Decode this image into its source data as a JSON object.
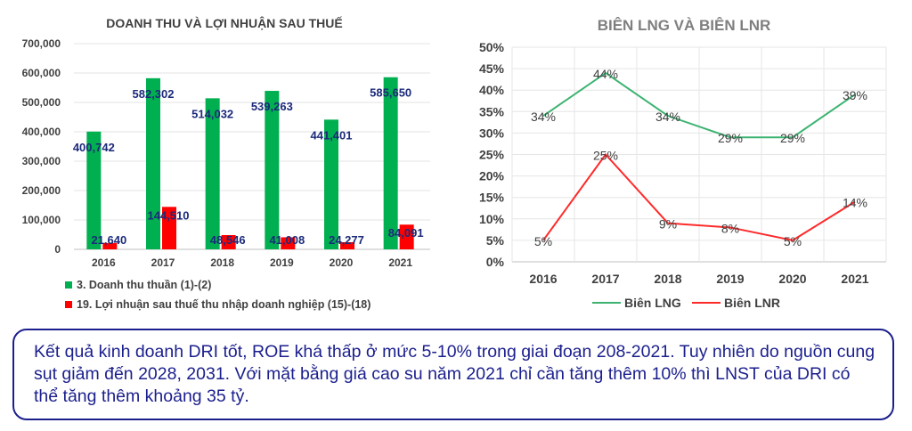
{
  "chart_data": [
    {
      "type": "bar",
      "title": "DOANH THU VÀ LỢI NHUẬN SAU THUẾ",
      "categories": [
        "2016",
        "2017",
        "2018",
        "2019",
        "2020",
        "2021"
      ],
      "yticks": [
        "700,000",
        "600,000",
        "500,000",
        "400,000",
        "300,000",
        "200,000",
        "100,000",
        "0"
      ],
      "ylim": [
        0,
        700000
      ],
      "grid": true,
      "legend_position": "bottom-left",
      "series": [
        {
          "name": "3. Doanh thu thuần (1)-(2)",
          "color": "#00b050",
          "values": [
            400742,
            582302,
            514032,
            539263,
            441401,
            585650
          ],
          "labels": [
            "400,742",
            "582,302",
            "514,032",
            "539,263",
            "441,401",
            "585,650"
          ]
        },
        {
          "name": "19. Lợi nhuận sau thuế thu nhập doanh nghiệp (15)-(18)",
          "color": "#ff0000",
          "values": [
            21640,
            144510,
            48546,
            41008,
            24277,
            84091
          ],
          "labels": [
            "21,640",
            "144,510",
            "48,546",
            "41,008",
            "24,277",
            "84,091"
          ]
        }
      ]
    },
    {
      "type": "line",
      "title": "BIÊN LNG VÀ BIÊN LNR",
      "categories": [
        "2016",
        "2017",
        "2018",
        "2019",
        "2020",
        "2021"
      ],
      "yticks": [
        "50%",
        "45%",
        "40%",
        "35%",
        "30%",
        "25%",
        "20%",
        "15%",
        "10%",
        "5%",
        "0%"
      ],
      "ylim": [
        0,
        50
      ],
      "grid": true,
      "legend_position": "bottom",
      "series": [
        {
          "name": "Biên LNG",
          "color": "#3cb371",
          "values": [
            34,
            44,
            34,
            29,
            29,
            39
          ],
          "labels": [
            "34%",
            "44%",
            "34%",
            "29%",
            "29%",
            "39%"
          ]
        },
        {
          "name": "Biên LNR",
          "color": "#ff2a2a",
          "values": [
            5,
            25,
            9,
            8,
            5,
            14
          ],
          "labels": [
            "5%",
            "25%",
            "9%",
            "8%",
            "5%",
            "14%"
          ]
        }
      ]
    }
  ],
  "note": {
    "text": "Kết quả kinh doanh DRI tốt, ROE khá thấp ở mức 5-10% trong giai đoạn 208-2021. Tuy nhiên do nguồn cung sụt giảm đến 2028, 2031. Với mặt bằng giá cao su năm 2021 chỉ cần tăng thêm 10% thì LNST của DRI có thể tăng thêm khoảng 35 tỷ."
  }
}
